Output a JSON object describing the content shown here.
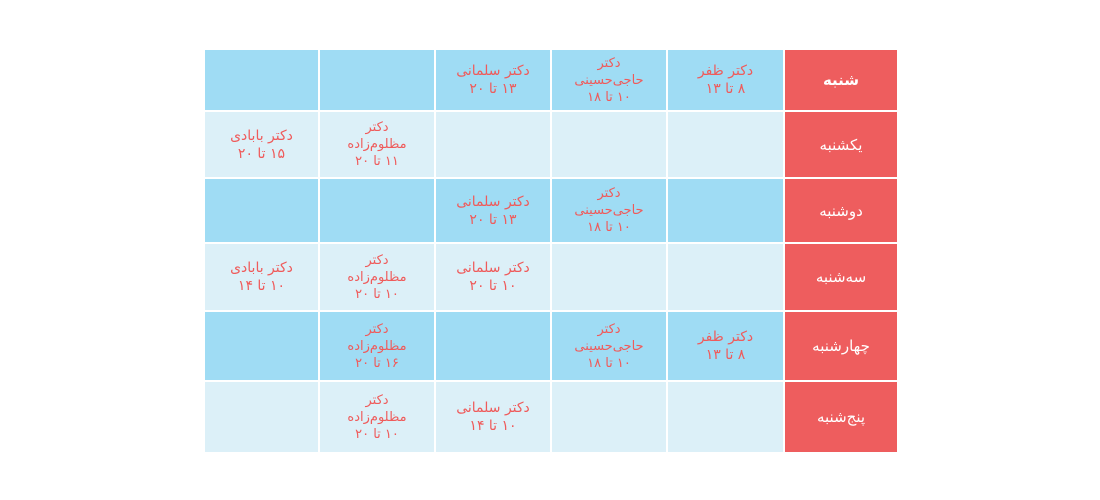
{
  "rows": [
    {
      "day": "شنبه",
      "cells": [
        [],
        [],
        [
          "دکتر سلمانی",
          "۱۳ تا ۲۰"
        ],
        [
          "دکتر",
          "حاجی‌حسینی",
          "۱۰ تا ۱۸"
        ],
        [
          "دکتر ظفر",
          "۸ تا ۱۳"
        ]
      ]
    },
    {
      "day": "یکشنبه",
      "cells": [
        [
          "دکتر بابادی",
          "۱۵ تا ۲۰"
        ],
        [
          "دکتر",
          "مظلوم‌زاده",
          "۱۱ تا ۲۰"
        ],
        [],
        [],
        []
      ]
    },
    {
      "day": "دوشنبه",
      "cells": [
        [],
        [],
        [
          "دکتر سلمانی",
          "۱۳ تا ۲۰"
        ],
        [
          "دکتر",
          "حاجی‌حسینی",
          "۱۰ تا ۱۸"
        ],
        []
      ]
    },
    {
      "day": "سه‌شنبه",
      "cells": [
        [
          "دکتر بابادی",
          "۱۰ تا ۱۴"
        ],
        [
          "دکتر",
          "مظلوم‌زاده",
          "۱۰ تا ۲۰"
        ],
        [
          "دکتر سلمانی",
          "۱۰ تا ۲۰"
        ],
        [],
        []
      ]
    },
    {
      "day": "چهارشنبه",
      "cells": [
        [],
        [
          "دکتر",
          "مظلوم‌زاده",
          "۱۶ تا ۲۰"
        ],
        [],
        [
          "دکتر",
          "حاجی‌حسینی",
          "۱۰ تا ۱۸"
        ],
        [
          "دکتر ظفر",
          "۸ تا ۱۳"
        ]
      ]
    },
    {
      "day": "پنج‌شنبه",
      "cells": [
        [],
        [
          "دکتر",
          "مظلوم‌زاده",
          "۱۰ تا ۲۰"
        ],
        [
          "دکتر سلمانی",
          "۱۰ تا ۱۴"
        ],
        [],
        []
      ]
    }
  ],
  "colors": {
    "day_bg": "#ee5d5e",
    "row_dark": "#9fdcf4",
    "row_light": "#dcf0f8",
    "text": "#ef5b5b"
  }
}
